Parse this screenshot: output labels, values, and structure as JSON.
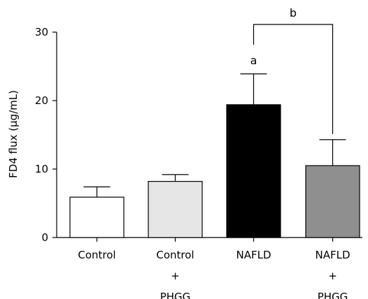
{
  "chart_data": {
    "type": "bar",
    "title": "",
    "xlabel": "",
    "ylabel": "FD4 flux (μg/mL)",
    "ylim": [
      0,
      30
    ],
    "yticks": [
      0,
      10,
      20,
      30
    ],
    "grid": false,
    "categories": [
      [
        "Control"
      ],
      [
        "Control",
        "+",
        "PHGG"
      ],
      [
        "NAFLD"
      ],
      [
        "NAFLD",
        "+",
        "PHGG"
      ]
    ],
    "values": [
      5.9,
      8.2,
      19.4,
      10.5
    ],
    "errors": [
      1.5,
      1.0,
      4.5,
      3.8
    ],
    "bar_colors": [
      "#ffffff",
      "#e6e6e6",
      "#000000",
      "#8f8f8f"
    ],
    "annotations": {
      "a": {
        "label": "a",
        "category_index": 2
      },
      "b": {
        "label": "b",
        "bracket": [
          2,
          3
        ]
      }
    }
  }
}
